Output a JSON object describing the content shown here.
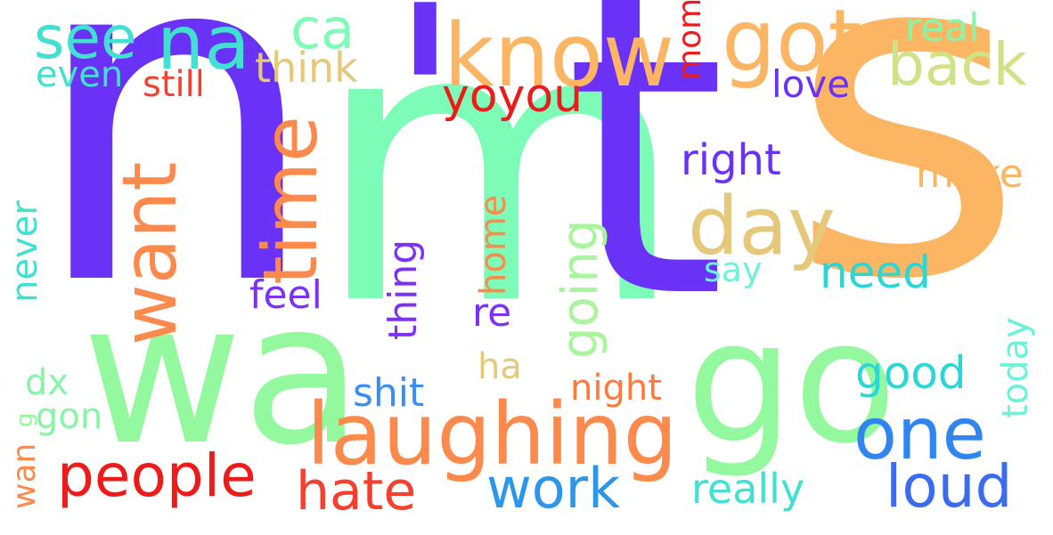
{
  "words": [
    {
      "key": "n",
      "text": "n",
      "color": "#6a31f6"
    },
    {
      "key": "m",
      "text": "m",
      "color": "#7cfcb6"
    },
    {
      "key": "apos",
      "text": "'",
      "color": "#6a31f6"
    },
    {
      "key": "t",
      "text": "t",
      "color": "#6a31f6"
    },
    {
      "key": "s",
      "text": "s",
      "color": "#fbb563"
    },
    {
      "key": "wa",
      "text": "wa",
      "color": "#94f99e"
    },
    {
      "key": "go",
      "text": "go",
      "color": "#94f99e"
    },
    {
      "key": "know",
      "text": "know",
      "color": "#fbb563"
    },
    {
      "key": "got",
      "text": "got",
      "color": "#fbb563"
    },
    {
      "key": "na",
      "text": "na",
      "color": "#42e0d0"
    },
    {
      "key": "see",
      "text": "see",
      "color": "#42e0d0"
    },
    {
      "key": "ca",
      "text": "ca",
      "color": "#7cfcb6"
    },
    {
      "key": "real",
      "text": "real",
      "color": "#8af3a6"
    },
    {
      "key": "back",
      "text": "back",
      "color": "#cfe386"
    },
    {
      "key": "think",
      "text": "think",
      "color": "#e6c87a"
    },
    {
      "key": "even",
      "text": "even",
      "color": "#42e0d0"
    },
    {
      "key": "still",
      "text": "still",
      "color": "#f4402e"
    },
    {
      "key": "yoyou",
      "text": "yoyou",
      "color": "#ee1b1b"
    },
    {
      "key": "mom",
      "text": "mom",
      "color": "#ee1b1b"
    },
    {
      "key": "love",
      "text": "love",
      "color": "#6a31f6"
    },
    {
      "key": "time",
      "text": "time",
      "color": "#fb8a4c"
    },
    {
      "key": "want",
      "text": "want",
      "color": "#fb8a4c"
    },
    {
      "key": "day",
      "text": "day",
      "color": "#e6c87a"
    },
    {
      "key": "right",
      "text": "right",
      "color": "#6a31f6"
    },
    {
      "key": "make",
      "text": "make",
      "color": "#fbb563"
    },
    {
      "key": "going",
      "text": "going",
      "color": "#a8f59b"
    },
    {
      "key": "home",
      "text": "home",
      "color": "#fb8a4c"
    },
    {
      "key": "thing",
      "text": "thing",
      "color": "#7d31f6"
    },
    {
      "key": "need",
      "text": "need",
      "color": "#2ad7d7"
    },
    {
      "key": "say",
      "text": "say",
      "color": "#6af3d8"
    },
    {
      "key": "feel",
      "text": "feel",
      "color": "#7d31f6"
    },
    {
      "key": "re",
      "text": "re",
      "color": "#7d31f6"
    },
    {
      "key": "never",
      "text": "never",
      "color": "#42e0d0"
    },
    {
      "key": "ha",
      "text": "ha",
      "color": "#e6c87a"
    },
    {
      "key": "today",
      "text": "today",
      "color": "#6af3d8"
    },
    {
      "key": "good",
      "text": "good",
      "color": "#2ad7d7"
    },
    {
      "key": "dx",
      "text": "dx",
      "color": "#8af3a6"
    },
    {
      "key": "shit",
      "text": "shit",
      "color": "#3a8ef2"
    },
    {
      "key": "night",
      "text": "night",
      "color": "#fb7a3c"
    },
    {
      "key": "gon",
      "text": "gon",
      "color": "#8af3a6"
    },
    {
      "key": "g",
      "text": "g",
      "color": "#94f99e"
    },
    {
      "key": "laughing",
      "text": "laughing",
      "color": "#fb8a4c"
    },
    {
      "key": "one",
      "text": "one",
      "color": "#2f86f0"
    },
    {
      "key": "wan",
      "text": "wan",
      "color": "#fb8a4c"
    },
    {
      "key": "people",
      "text": "people",
      "color": "#ee1b1b"
    },
    {
      "key": "hate",
      "text": "hate",
      "color": "#f4402e"
    },
    {
      "key": "work",
      "text": "work",
      "color": "#2b96ea"
    },
    {
      "key": "really",
      "text": "really",
      "color": "#42e0d0"
    },
    {
      "key": "loud",
      "text": "loud",
      "color": "#3a6cf2"
    }
  ]
}
